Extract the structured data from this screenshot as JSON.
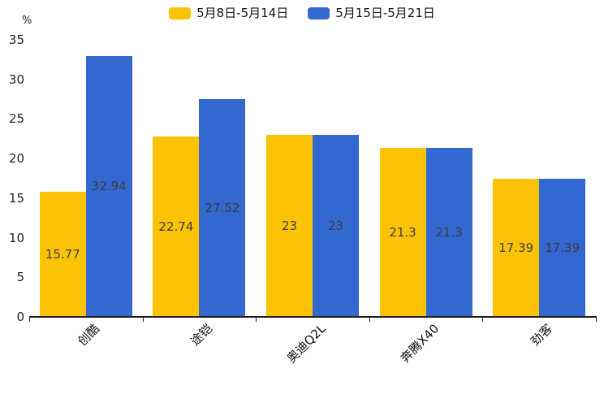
{
  "chart_data": {
    "type": "bar",
    "title": "",
    "unit_label": "%",
    "categories": [
      "创酷",
      "途铠",
      "奥迪Q2L",
      "奔腾X40",
      "劲客"
    ],
    "series": [
      {
        "name": "5月8日-5月14日",
        "color": "#fcc306",
        "values": [
          15.77,
          22.74,
          23,
          21.3,
          17.39
        ]
      },
      {
        "name": "5月15日-5月21日",
        "color": "#3468d1",
        "values": [
          32.94,
          27.52,
          23,
          21.3,
          17.39
        ]
      }
    ],
    "ylim": [
      0,
      35
    ],
    "ytick_step": 5,
    "yticks": [
      0,
      5,
      10,
      15,
      20,
      25,
      30,
      35
    ],
    "grid": false,
    "legend_position": "top",
    "value_label_position": "inside-middle",
    "value_label_color": "#3d3d3d",
    "axis_color": "#1c1c1c",
    "text_color": "#111111",
    "xlabel_rotation_deg": 45
  }
}
